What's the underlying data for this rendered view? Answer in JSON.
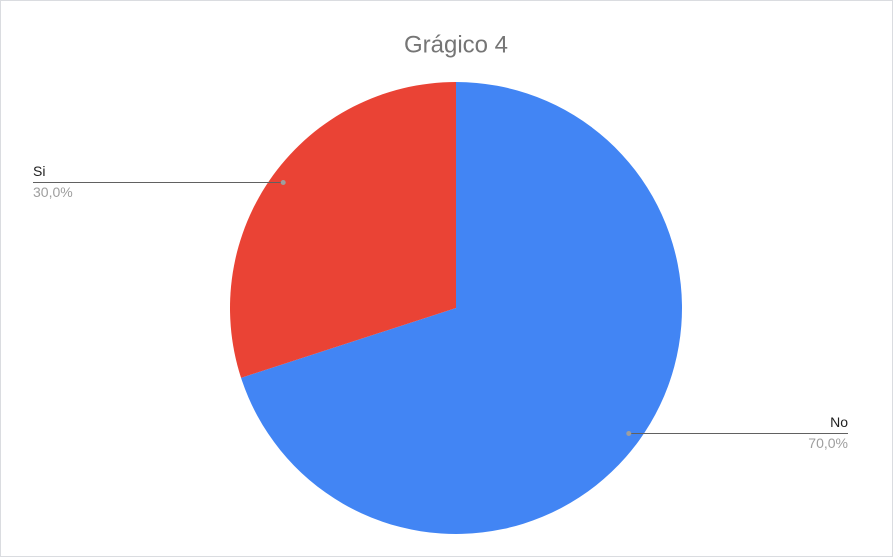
{
  "chart_data": {
    "type": "pie",
    "title": "Grágico 4",
    "categories": [
      "No",
      "Si"
    ],
    "values": [
      70,
      30
    ],
    "value_labels": [
      "70,0%",
      "30,0%"
    ],
    "colors": [
      "#4285f4",
      "#ea4335"
    ]
  }
}
